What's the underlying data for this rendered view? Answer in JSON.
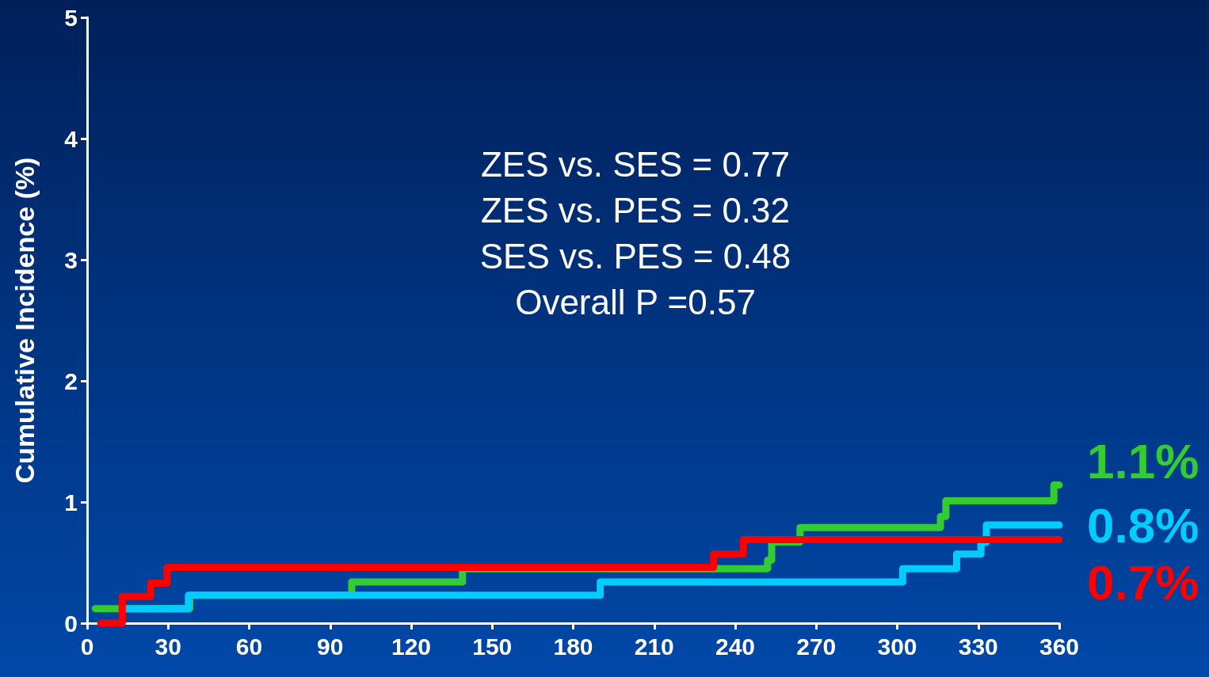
{
  "chart_data": {
    "type": "step",
    "ylabel": "Cumulative Incidence (%)",
    "xlim": [
      0,
      360
    ],
    "xticks": [
      0,
      30,
      60,
      90,
      120,
      150,
      180,
      210,
      240,
      270,
      300,
      330,
      360
    ],
    "ylim": [
      0,
      5
    ],
    "yticks": [
      0,
      1,
      2,
      3,
      4,
      5
    ],
    "grid": false,
    "marker": "none",
    "line_style": "solid",
    "series": [
      {
        "color": "#33cc33",
        "x": [
          3,
          38,
          98,
          139,
          252,
          253.5,
          264,
          316,
          318,
          358,
          360
        ],
        "values": [
          0.12,
          0.23,
          0.34,
          0.45,
          0.52,
          0.67,
          0.79,
          0.88,
          1.01,
          1.14,
          1.14
        ]
      },
      {
        "color": "#00ccff",
        "x": [
          14,
          37.5,
          190,
          302,
          322,
          331,
          333,
          360
        ],
        "values": [
          0.12,
          0.23,
          0.34,
          0.45,
          0.57,
          0.67,
          0.81,
          0.81
        ]
      },
      {
        "color": "#ff0000",
        "x": [
          5,
          13,
          23.5,
          29.6,
          232,
          243,
          360
        ],
        "values": [
          0,
          0.22,
          0.33,
          0.46,
          0.57,
          0.69,
          0.69
        ]
      }
    ],
    "annotations": [
      "ZES vs. SES = 0.77",
      "ZES vs. PES = 0.32",
      "SES vs. PES = 0.48",
      "Overall P =0.57",
      "1.1%",
      "0.8%",
      "0.7%"
    ]
  }
}
